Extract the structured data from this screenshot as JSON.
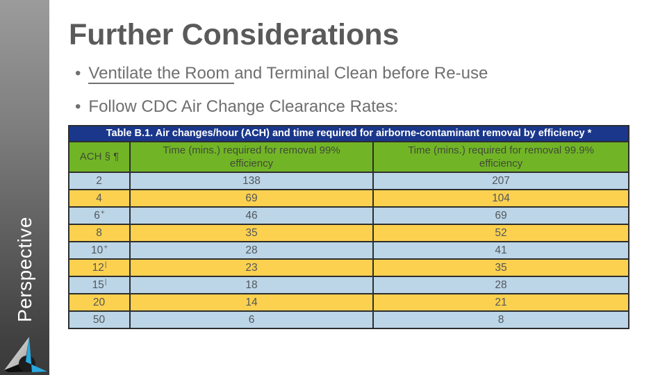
{
  "slide": {
    "title": "Further Considerations",
    "bullet_char": "•",
    "bullets": [
      {
        "underlined": "Ventilate the Room",
        "rest": "and Terminal Clean before Re-use"
      },
      {
        "text": "Follow CDC Air Change Clearance Rates:"
      }
    ]
  },
  "sidebar": {
    "label": "Perspective"
  },
  "table": {
    "title": "Table B.1. Air changes/hour (ACH) and time required for airborne-contaminant removal by efficiency *",
    "columns": [
      "ACH § ¶",
      "Time (mins.) required for removal 99% efficiency",
      "Time (mins.) required for removal 99.9% efficiency"
    ],
    "rows": [
      {
        "ach": "2",
        "sup": "",
        "t99": "138",
        "t999": "207",
        "highlight": false
      },
      {
        "ach": "4",
        "sup": "",
        "t99": "69",
        "t999": "104",
        "highlight": true
      },
      {
        "ach": "6",
        "sup": "+",
        "t99": "46",
        "t999": "69",
        "highlight": false
      },
      {
        "ach": "8",
        "sup": "",
        "t99": "35",
        "t999": "52",
        "highlight": true
      },
      {
        "ach": "10",
        "sup": "+",
        "t99": "28",
        "t999": "41",
        "highlight": false
      },
      {
        "ach": "12",
        "sup": "|",
        "t99": "23",
        "t999": "35",
        "highlight": true
      },
      {
        "ach": "15",
        "sup": "|",
        "t99": "18",
        "t999": "28",
        "highlight": false
      },
      {
        "ach": "20",
        "sup": "",
        "t99": "14",
        "t999": "21",
        "highlight": true
      },
      {
        "ach": "50",
        "sup": "",
        "t99": "6",
        "t999": "8",
        "highlight": false
      }
    ],
    "colors": {
      "title_bar_blue": "#1a378c",
      "header_green": "#71b527",
      "row_blue": "#bcd6e8",
      "row_yellow": "#fcd14f",
      "logo_blue": "#29a9e0"
    }
  }
}
